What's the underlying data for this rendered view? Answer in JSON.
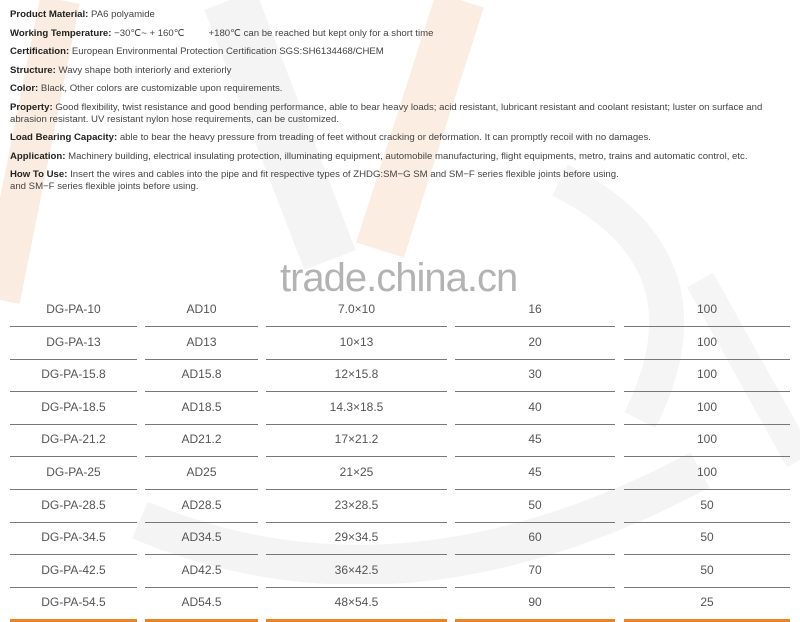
{
  "specs": [
    {
      "label": "Product Material:",
      "text": "PA6 polyamide"
    },
    {
      "label": "Working Temperature:",
      "text": "−30℃~ + 160℃",
      "extra": "+180℃ can be reached but kept only for a short time"
    },
    {
      "label": "Certification:",
      "text": "European Environmental Protection Certification SGS:SH6134468/CHEM"
    },
    {
      "label": "Structure:",
      "text": "Wavy shape both interiorly and exteriorly"
    },
    {
      "label": "Color:",
      "text": "Black, Other colors are customizable upon requirements."
    },
    {
      "label": "Property:",
      "text": "Good flexibility, twist resistance and good bending performance, able to bear heavy loads; acid resistant, lubricant resistant and coolant resistant; luster on surface and abrasion resistant. UV resistant nylon hose requirements, can be customized."
    },
    {
      "label": "Load Bearing Capacity:",
      "text": "able to bear the heavy pressure from treading of feet without cracking or deformation. It can promptly recoil with no damages."
    },
    {
      "label": "Application:",
      "text": "Machinery building, electrical insulating protection, illuminating equipment, automobile manufacturing, flight equipments, metro, trains and automatic control, etc."
    },
    {
      "label": "How To Use:",
      "text": "Insert the wires and cables into the pipe and fit respective types of ZHDG:SM−G SM and SM−F series flexible joints before using.",
      "extra2": "and SM−F series flexible joints before using."
    }
  ],
  "watermark": "trade.china.cn",
  "table": {
    "rows": [
      [
        "DG-PA-10",
        "AD10",
        "7.0×10",
        "16",
        "100"
      ],
      [
        "DG-PA-13",
        "AD13",
        "10×13",
        "20",
        "100"
      ],
      [
        "DG-PA-15.8",
        "AD15.8",
        "12×15.8",
        "30",
        "100"
      ],
      [
        "DG-PA-18.5",
        "AD18.5",
        "14.3×18.5",
        "40",
        "100"
      ],
      [
        "DG-PA-21.2",
        "AD21.2",
        "17×21.2",
        "45",
        "100"
      ],
      [
        "DG-PA-25",
        "AD25",
        "21×25",
        "45",
        "100"
      ],
      [
        "DG-PA-28.5",
        "AD28.5",
        "23×28.5",
        "50",
        "50"
      ],
      [
        "DG-PA-34.5",
        "AD34.5",
        "29×34.5",
        "60",
        "50"
      ],
      [
        "DG-PA-42.5",
        "AD42.5",
        "36×42.5",
        "70",
        "50"
      ],
      [
        "DG-PA-54.5",
        "AD54.5",
        "48×54.5",
        "90",
        "25"
      ]
    ]
  },
  "colors": {
    "accent": "#e8832a",
    "rule": "#777777"
  }
}
